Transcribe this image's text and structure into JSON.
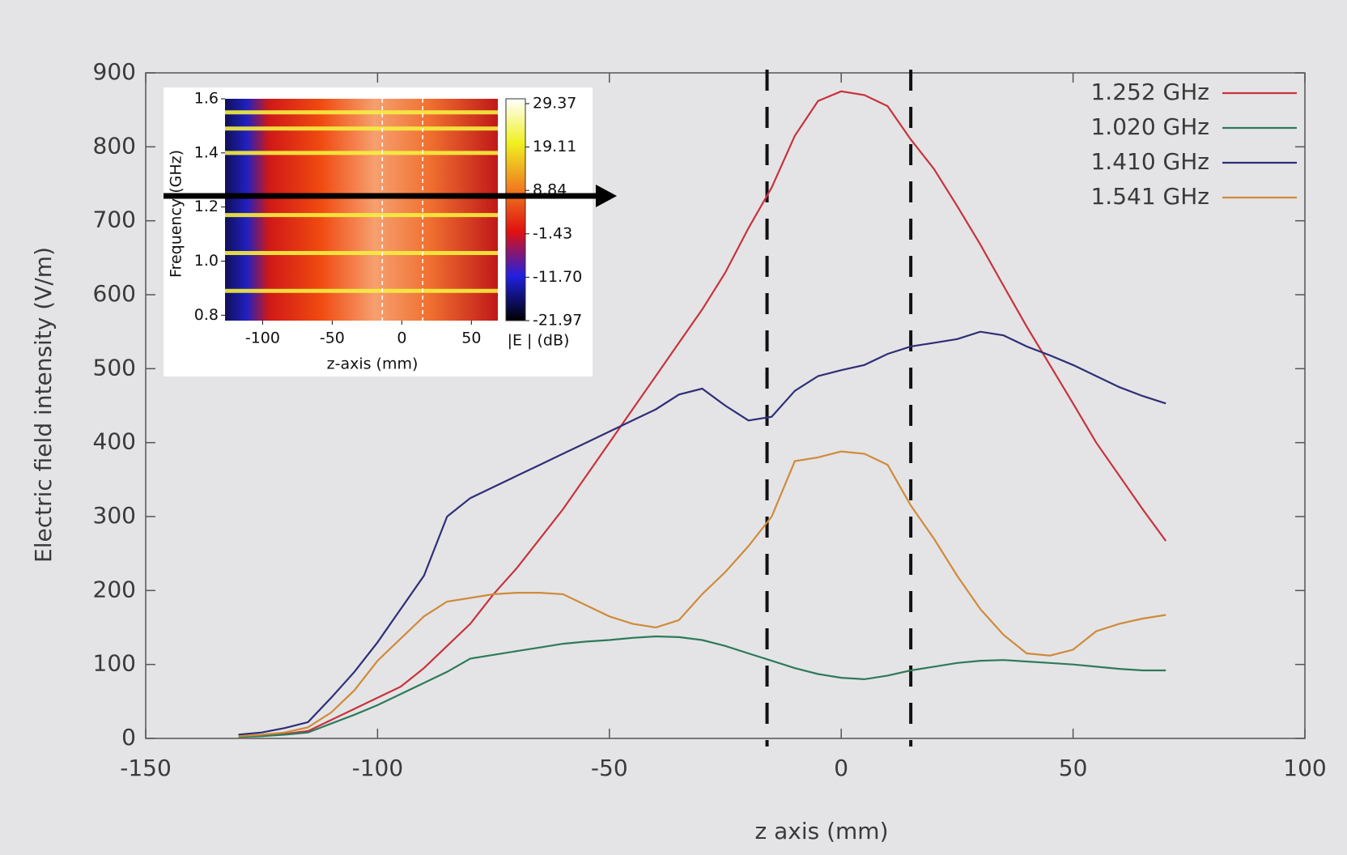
{
  "chart_data": [
    {
      "type": "line",
      "xlabel": "z axis (mm)",
      "ylabel": "Electric field intensity (V/m)",
      "x": [
        -130,
        -125,
        -120,
        -115,
        -110,
        -105,
        -100,
        -95,
        -90,
        -85,
        -80,
        -75,
        -70,
        -65,
        -60,
        -55,
        -50,
        -45,
        -40,
        -35,
        -30,
        -25,
        -20,
        -15,
        -10,
        -5,
        0,
        5,
        10,
        15,
        20,
        25,
        30,
        35,
        40,
        45,
        50,
        55,
        60,
        65,
        70
      ],
      "series": [
        {
          "name": "1.252 GHz",
          "color": "#c8323c",
          "values": [
            3,
            4,
            6,
            10,
            25,
            40,
            55,
            70,
            95,
            125,
            155,
            195,
            230,
            270,
            310,
            355,
            400,
            445,
            490,
            535,
            580,
            630,
            690,
            745,
            815,
            862,
            875,
            870,
            855,
            810,
            770,
            720,
            668,
            612,
            557,
            505,
            453,
            400,
            355,
            310,
            267
          ]
        },
        {
          "name": "1.020 GHz",
          "color": "#2e7a5a",
          "values": [
            2,
            3,
            5,
            8,
            20,
            32,
            45,
            60,
            75,
            90,
            108,
            113,
            118,
            123,
            128,
            131,
            133,
            136,
            138,
            137,
            133,
            125,
            115,
            105,
            95,
            87,
            82,
            80,
            85,
            92,
            97,
            102,
            105,
            106,
            104,
            102,
            100,
            97,
            94,
            92,
            92
          ]
        },
        {
          "name": "1.410 GHz",
          "color": "#2e2e78",
          "values": [
            5,
            8,
            14,
            22,
            55,
            90,
            130,
            175,
            220,
            300,
            325,
            340,
            355,
            370,
            385,
            400,
            415,
            430,
            445,
            465,
            473,
            450,
            430,
            435,
            470,
            490,
            498,
            505,
            520,
            530,
            535,
            540,
            550,
            545,
            530,
            518,
            505,
            490,
            475,
            463,
            453
          ]
        },
        {
          "name": "1.541 GHz",
          "color": "#d08a3a",
          "values": [
            3,
            5,
            8,
            15,
            35,
            65,
            105,
            135,
            165,
            185,
            190,
            195,
            197,
            197,
            195,
            180,
            165,
            155,
            150,
            160,
            195,
            225,
            260,
            300,
            375,
            380,
            388,
            385,
            370,
            315,
            270,
            220,
            175,
            140,
            115,
            112,
            120,
            145,
            155,
            162,
            167
          ]
        }
      ],
      "dashed_lines": [
        -16,
        15
      ],
      "xlim": [
        -150,
        100
      ],
      "ylim": [
        0,
        900
      ],
      "xticks": [
        -150,
        -100,
        -50,
        0,
        50,
        100
      ],
      "yticks": [
        0,
        100,
        200,
        300,
        400,
        500,
        600,
        700,
        800,
        900
      ],
      "legend": "upper right"
    },
    {
      "type": "heatmap",
      "xlabel": "z-axis (mm)",
      "ylabel": "Frequency (GHz)",
      "colorbar_label": "|E | (dB)",
      "xlim": [
        -127,
        69
      ],
      "ylim": [
        0.78,
        1.6
      ],
      "xticks": [
        -100,
        -50,
        0,
        50
      ],
      "yticks": [
        0.8,
        {
          "value": 1,
          "label": "1.0"
        },
        1.2,
        1.4,
        1.6
      ],
      "colorbar_ticks": [
        29.37,
        19.11,
        8.84,
        -1.43,
        {
          "value": -11.7,
          "label": "-11.70"
        },
        -21.97
      ],
      "bright_lines": [
        1.55,
        1.49,
        1.4,
        1.17,
        1.03,
        0.89
      ],
      "dashed_lines": [
        -14,
        15
      ]
    }
  ]
}
